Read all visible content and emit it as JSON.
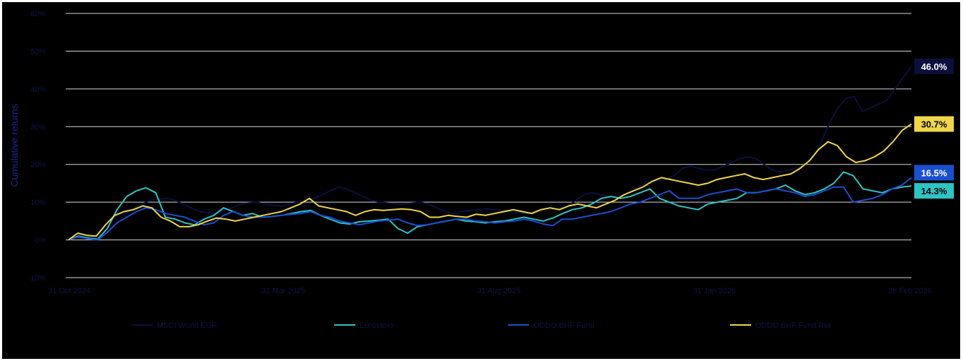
{
  "chart_data": {
    "type": "line",
    "ylabel": "Cumulative returns",
    "yticks": [
      "60%",
      "50%",
      "40%",
      "30%",
      "20%",
      "10%",
      "0%",
      "-10%"
    ],
    "ylim": [
      -10,
      60
    ],
    "xticks": [
      "31 Oct 2024",
      "31 Mar 2025",
      "31 Aug 2025",
      "31 Jan 2026",
      "28 Feb 2026"
    ],
    "grid": true,
    "legend_position": "bottom",
    "series": [
      {
        "name": "MSCI World EUR",
        "color": "#0b0f3d",
        "end_label": "46.0%",
        "end_label_color": "#0b0f3d",
        "end_label_text_color": "#ffffff",
        "values": [
          0.0,
          1.5,
          1.2,
          0.8,
          3.0,
          5.0,
          6.5,
          7.0,
          8.5,
          9.5,
          10.5,
          10.8,
          11.0,
          10.5,
          9.5,
          8.5,
          7.5,
          7.2,
          7.0,
          7.8,
          8.5,
          9.5,
          9.8,
          10.0,
          9.5,
          9.2,
          9.0,
          9.5,
          10.0,
          10.5,
          11.0,
          12.0,
          13.0,
          14.0,
          13.5,
          12.5,
          11.5,
          10.5,
          10.0,
          9.8,
          9.5,
          9.5,
          9.8,
          10.0,
          9.5,
          8.5,
          7.5,
          7.0,
          7.5,
          7.8,
          8.0,
          8.2,
          8.0,
          7.8,
          7.5,
          7.2,
          7.0,
          7.5,
          8.0,
          8.0,
          8.5,
          9.0,
          10.5,
          12.0,
          12.5,
          12.0,
          11.5,
          11.5,
          12.0,
          13.5,
          14.5,
          15.5,
          15.5,
          16.0,
          17.0,
          19.0,
          19.5,
          19.0,
          18.5,
          18.5,
          19.5,
          20.5,
          21.5,
          22.0,
          21.5,
          20.0,
          18.5,
          18.0,
          18.5,
          19.0,
          20.0,
          22.0,
          26.0,
          31.0,
          35.0,
          37.5,
          38.0,
          34.0,
          35.0,
          36.0,
          37.0,
          40.0,
          43.0,
          46.0
        ]
      },
      {
        "name": "Eurostoxx",
        "color": "#2ec4c4",
        "end_label": "14.3%",
        "end_label_color": "#2ec4c4",
        "end_label_text_color": "#000000",
        "values": [
          0.0,
          1.0,
          0.5,
          0.2,
          3.0,
          8.0,
          11.5,
          13.0,
          13.8,
          12.5,
          6.0,
          5.5,
          4.5,
          4.0,
          5.5,
          6.5,
          8.5,
          7.5,
          6.5,
          7.0,
          6.0,
          6.2,
          6.5,
          7.0,
          7.5,
          7.8,
          6.5,
          5.5,
          4.5,
          4.2,
          4.8,
          5.0,
          5.2,
          5.5,
          3.0,
          1.8,
          3.5,
          4.0,
          4.5,
          5.0,
          5.5,
          5.0,
          4.8,
          4.5,
          4.8,
          5.0,
          5.5,
          6.0,
          5.5,
          5.0,
          5.8,
          7.0,
          8.0,
          8.5,
          9.5,
          11.0,
          11.5,
          11.0,
          11.5,
          12.5,
          13.5,
          11.0,
          10.0,
          9.0,
          8.5,
          8.0,
          9.5,
          10.0,
          10.5,
          11.0,
          12.5,
          12.5,
          13.0,
          13.5,
          14.5,
          13.0,
          12.0,
          12.5,
          13.5,
          15.0,
          18.0,
          17.0,
          13.5,
          13.0,
          12.5,
          13.5,
          14.0,
          14.3
        ]
      },
      {
        "name": "ODDO BHF Fund",
        "color": "#1b4fd1",
        "end_label": "16.5%",
        "end_label_color": "#1b4fd1",
        "end_label_text_color": "#ffffff",
        "values": [
          0.0,
          0.8,
          0.3,
          0.0,
          2.0,
          4.5,
          6.0,
          7.5,
          8.5,
          8.0,
          7.0,
          6.5,
          6.0,
          5.0,
          4.0,
          4.5,
          6.5,
          7.5,
          6.5,
          6.0,
          6.0,
          6.2,
          6.5,
          6.8,
          7.0,
          7.5,
          6.5,
          6.0,
          5.0,
          4.5,
          4.0,
          4.5,
          5.0,
          5.2,
          5.5,
          4.5,
          3.8,
          4.0,
          4.5,
          5.0,
          5.5,
          5.5,
          5.0,
          4.8,
          4.5,
          4.8,
          5.0,
          5.5,
          5.0,
          4.2,
          3.8,
          5.5,
          5.5,
          6.0,
          6.5,
          7.0,
          7.5,
          8.5,
          9.5,
          10.0,
          11.0,
          12.0,
          13.0,
          11.0,
          11.0,
          11.0,
          12.0,
          12.5,
          13.0,
          13.5,
          12.5,
          12.5,
          13.0,
          13.5,
          13.0,
          12.5,
          11.5,
          12.0,
          13.0,
          14.0,
          14.0,
          10.0,
          10.5,
          11.0,
          12.0,
          13.5,
          14.5,
          16.5
        ]
      },
      {
        "name": "ODDO BHF Fund Ret",
        "color": "#f0d64a",
        "end_label": "30.7%",
        "end_label_color": "#f0d64a",
        "end_label_text_color": "#000000",
        "values": [
          0.0,
          1.8,
          1.2,
          1.0,
          4.0,
          6.5,
          7.5,
          8.0,
          9.0,
          8.5,
          6.0,
          5.0,
          3.5,
          3.5,
          4.0,
          5.0,
          5.8,
          5.5,
          5.0,
          5.5,
          6.0,
          6.5,
          7.0,
          7.5,
          8.5,
          9.5,
          11.0,
          9.0,
          8.5,
          8.0,
          7.5,
          6.5,
          7.5,
          8.0,
          7.8,
          8.0,
          8.2,
          8.0,
          7.5,
          6.0,
          6.0,
          6.5,
          6.2,
          6.0,
          6.8,
          6.5,
          7.0,
          7.5,
          8.0,
          7.5,
          7.0,
          8.0,
          8.5,
          8.0,
          9.0,
          9.5,
          9.0,
          8.5,
          9.5,
          10.5,
          12.0,
          13.0,
          14.0,
          15.5,
          16.5,
          16.0,
          15.5,
          15.0,
          14.5,
          15.0,
          16.0,
          16.5,
          17.0,
          17.5,
          16.5,
          16.0,
          16.5,
          17.0,
          17.5,
          19.0,
          21.0,
          24.0,
          26.0,
          25.0,
          22.0,
          20.5,
          21.0,
          22.0,
          23.5,
          26.0,
          29.0,
          30.7
        ]
      }
    ]
  }
}
